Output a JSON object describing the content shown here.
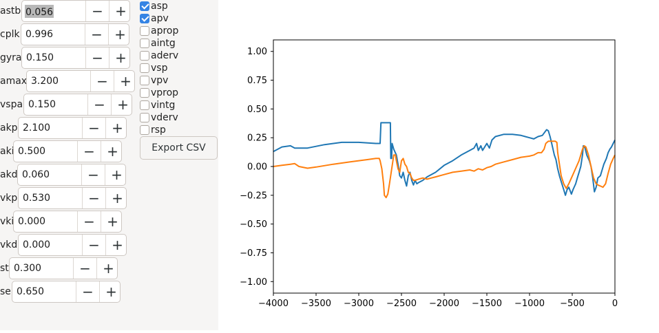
{
  "params": [
    {
      "label": "astb",
      "value": "0.056",
      "selected": true
    },
    {
      "label": "cplk",
      "value": "0.996"
    },
    {
      "label": "gyra",
      "value": "0.150"
    },
    {
      "label": "amax",
      "value": "3.200"
    },
    {
      "label": "vspa",
      "value": "0.150"
    },
    {
      "label": "akp",
      "value": "2.100"
    },
    {
      "label": "aki",
      "value": "0.500"
    },
    {
      "label": "akd",
      "value": "0.060"
    },
    {
      "label": "vkp",
      "value": "0.530"
    },
    {
      "label": "vki",
      "value": "0.000"
    },
    {
      "label": "vkd",
      "value": "0.000"
    },
    {
      "label": "st",
      "value": "0.300"
    },
    {
      "label": "se",
      "value": "0.650"
    }
  ],
  "spin_buttons": {
    "minus": "−",
    "plus": "+"
  },
  "checkboxes": [
    {
      "label": "asp",
      "checked": true
    },
    {
      "label": "apv",
      "checked": true
    },
    {
      "label": "aprop",
      "checked": false
    },
    {
      "label": "aintg",
      "checked": false
    },
    {
      "label": "aderv",
      "checked": false
    },
    {
      "label": "vsp",
      "checked": false
    },
    {
      "label": "vpv",
      "checked": false
    },
    {
      "label": "vprop",
      "checked": false
    },
    {
      "label": "vintg",
      "checked": false
    },
    {
      "label": "vderv",
      "checked": false
    },
    {
      "label": "rsp",
      "checked": false
    }
  ],
  "export_button": {
    "label": "Export CSV"
  },
  "chart_data": {
    "type": "line",
    "xlim": [
      -4000,
      0
    ],
    "ylim": [
      -1.1,
      1.1
    ],
    "xticks": [
      -4000,
      -3500,
      -3000,
      -2500,
      -2000,
      -1500,
      -1000,
      -500,
      0
    ],
    "xtick_labels": [
      "−4000",
      "−3500",
      "−3000",
      "−2500",
      "−2000",
      "−1500",
      "−1000",
      "−500",
      "0"
    ],
    "yticks": [
      -1.0,
      -0.75,
      -0.5,
      -0.25,
      0.0,
      0.25,
      0.5,
      0.75,
      1.0
    ],
    "ytick_labels": [
      "−1.00",
      "−0.75",
      "−0.50",
      "−0.25",
      "0.00",
      "0.25",
      "0.50",
      "0.75",
      "1.00"
    ],
    "grid": false,
    "series": [
      {
        "color": "#1f77b4",
        "points": [
          [
            -4000,
            0.13
          ],
          [
            -3900,
            0.17
          ],
          [
            -3800,
            0.18
          ],
          [
            -3750,
            0.16
          ],
          [
            -3700,
            0.16
          ],
          [
            -3600,
            0.16
          ],
          [
            -3400,
            0.19
          ],
          [
            -3200,
            0.21
          ],
          [
            -3000,
            0.21
          ],
          [
            -2800,
            0.2
          ],
          [
            -2750,
            0.2
          ],
          [
            -2740,
            0.38
          ],
          [
            -2630,
            0.38
          ],
          [
            -2625,
            0.07
          ],
          [
            -2615,
            0.07
          ],
          [
            -2610,
            0.2
          ],
          [
            -2590,
            0.15
          ],
          [
            -2560,
            0.1
          ],
          [
            -2540,
            0.02
          ],
          [
            -2520,
            -0.08
          ],
          [
            -2500,
            -0.1
          ],
          [
            -2480,
            -0.05
          ],
          [
            -2460,
            -0.12
          ],
          [
            -2440,
            -0.17
          ],
          [
            -2420,
            -0.08
          ],
          [
            -2400,
            -0.05
          ],
          [
            -2380,
            -0.12
          ],
          [
            -2360,
            -0.16
          ],
          [
            -2340,
            -0.12
          ],
          [
            -2320,
            -0.15
          ],
          [
            -2300,
            -0.14
          ],
          [
            -2250,
            -0.12
          ],
          [
            -2200,
            -0.09
          ],
          [
            -2150,
            -0.07
          ],
          [
            -2100,
            -0.05
          ],
          [
            -2000,
            0.01
          ],
          [
            -1900,
            0.05
          ],
          [
            -1800,
            0.1
          ],
          [
            -1700,
            0.14
          ],
          [
            -1650,
            0.16
          ],
          [
            -1620,
            0.2
          ],
          [
            -1600,
            0.14
          ],
          [
            -1570,
            0.18
          ],
          [
            -1550,
            0.14
          ],
          [
            -1500,
            0.2
          ],
          [
            -1470,
            0.16
          ],
          [
            -1440,
            0.23
          ],
          [
            -1400,
            0.26
          ],
          [
            -1300,
            0.28
          ],
          [
            -1200,
            0.28
          ],
          [
            -1100,
            0.27
          ],
          [
            -1000,
            0.25
          ],
          [
            -950,
            0.24
          ],
          [
            -900,
            0.26
          ],
          [
            -850,
            0.27
          ],
          [
            -820,
            0.3
          ],
          [
            -800,
            0.32
          ],
          [
            -780,
            0.31
          ],
          [
            -760,
            0.26
          ],
          [
            -740,
            0.2
          ],
          [
            -710,
            0.1
          ],
          [
            -690,
            0.06
          ],
          [
            -670,
            -0.02
          ],
          [
            -650,
            -0.08
          ],
          [
            -630,
            -0.13
          ],
          [
            -600,
            -0.2
          ],
          [
            -580,
            -0.25
          ],
          [
            -560,
            -0.2
          ],
          [
            -540,
            -0.18
          ],
          [
            -510,
            -0.24
          ],
          [
            -490,
            -0.2
          ],
          [
            -460,
            -0.15
          ],
          [
            -440,
            -0.1
          ],
          [
            -420,
            -0.05
          ],
          [
            -400,
            0.0
          ],
          [
            -380,
            0.1
          ],
          [
            -370,
            0.18
          ],
          [
            -350,
            0.16
          ],
          [
            -330,
            0.1
          ],
          [
            -300,
            0.05
          ],
          [
            -280,
            0.0
          ],
          [
            -260,
            -0.1
          ],
          [
            -240,
            -0.22
          ],
          [
            -220,
            -0.18
          ],
          [
            -200,
            -0.1
          ],
          [
            -170,
            -0.08
          ],
          [
            -150,
            -0.03
          ],
          [
            -130,
            0.02
          ],
          [
            -100,
            0.07
          ],
          [
            -80,
            0.12
          ],
          [
            -60,
            0.15
          ],
          [
            -40,
            0.17
          ],
          [
            -20,
            0.2
          ],
          [
            0,
            0.23
          ]
        ]
      },
      {
        "color": "#ff7f0e",
        "points": [
          [
            -4000,
            0.0
          ],
          [
            -3900,
            0.01
          ],
          [
            -3800,
            0.02
          ],
          [
            -3750,
            0.025
          ],
          [
            -3700,
            0.0
          ],
          [
            -3600,
            -0.015
          ],
          [
            -3500,
            -0.005
          ],
          [
            -3300,
            0.02
          ],
          [
            -3100,
            0.04
          ],
          [
            -2900,
            0.06
          ],
          [
            -2800,
            0.07
          ],
          [
            -2760,
            0.07
          ],
          [
            -2750,
            0.05
          ],
          [
            -2730,
            -0.02
          ],
          [
            -2710,
            -0.15
          ],
          [
            -2700,
            -0.25
          ],
          [
            -2680,
            -0.27
          ],
          [
            -2660,
            -0.24
          ],
          [
            -2640,
            -0.15
          ],
          [
            -2620,
            -0.05
          ],
          [
            -2600,
            0.05
          ],
          [
            -2590,
            0.1
          ],
          [
            -2570,
            0.1
          ],
          [
            -2560,
            0.05
          ],
          [
            -2540,
            -0.02
          ],
          [
            -2520,
            -0.05
          ],
          [
            -2500,
            0.05
          ],
          [
            -2480,
            0.07
          ],
          [
            -2460,
            0.02
          ],
          [
            -2440,
            0.0
          ],
          [
            -2420,
            -0.05
          ],
          [
            -2400,
            -0.06
          ],
          [
            -2380,
            -0.1
          ],
          [
            -2360,
            -0.12
          ],
          [
            -2340,
            -0.12
          ],
          [
            -2300,
            -0.11
          ],
          [
            -2250,
            -0.1
          ],
          [
            -2200,
            -0.11
          ],
          [
            -2150,
            -0.1
          ],
          [
            -2100,
            -0.09
          ],
          [
            -2000,
            -0.07
          ],
          [
            -1900,
            -0.05
          ],
          [
            -1800,
            -0.04
          ],
          [
            -1700,
            -0.03
          ],
          [
            -1650,
            -0.04
          ],
          [
            -1600,
            -0.02
          ],
          [
            -1550,
            -0.03
          ],
          [
            -1500,
            -0.01
          ],
          [
            -1450,
            0.0
          ],
          [
            -1400,
            0.02
          ],
          [
            -1300,
            0.04
          ],
          [
            -1200,
            0.06
          ],
          [
            -1100,
            0.08
          ],
          [
            -1000,
            0.09
          ],
          [
            -950,
            0.1
          ],
          [
            -900,
            0.12
          ],
          [
            -860,
            0.12
          ],
          [
            -830,
            0.15
          ],
          [
            -810,
            0.2
          ],
          [
            -780,
            0.22
          ],
          [
            -700,
            0.22
          ],
          [
            -680,
            0.21
          ],
          [
            -670,
            0.12
          ],
          [
            -650,
            0.02
          ],
          [
            -630,
            -0.08
          ],
          [
            -600,
            -0.15
          ],
          [
            -570,
            -0.19
          ],
          [
            -540,
            -0.15
          ],
          [
            -510,
            -0.1
          ],
          [
            -480,
            -0.05
          ],
          [
            -450,
            0.0
          ],
          [
            -420,
            0.05
          ],
          [
            -400,
            0.1
          ],
          [
            -380,
            0.15
          ],
          [
            -360,
            0.18
          ],
          [
            -340,
            0.17
          ],
          [
            -310,
            0.1
          ],
          [
            -280,
            0.0
          ],
          [
            -250,
            -0.1
          ],
          [
            -220,
            -0.15
          ],
          [
            -200,
            -0.16
          ],
          [
            -170,
            -0.17
          ],
          [
            -140,
            -0.18
          ],
          [
            -110,
            -0.15
          ],
          [
            -80,
            -0.06
          ],
          [
            -50,
            0.02
          ],
          [
            -20,
            0.07
          ],
          [
            0,
            0.1
          ]
        ]
      }
    ]
  }
}
